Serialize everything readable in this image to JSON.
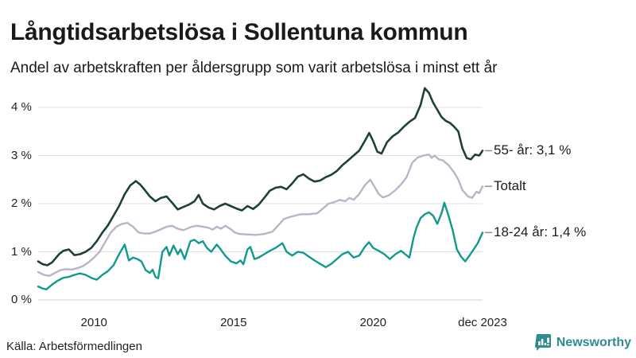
{
  "header": {
    "title": "Långtidsarbetslösa i Sollentuna kommun",
    "subtitle": "Andel av arbetskraften per åldersgrupp som varit arbetslösa i minst ett år"
  },
  "colors": {
    "series_55": "#1f4038",
    "series_total": "#b9b5c8",
    "series_18_24": "#0f9a8d",
    "grid": "#e1e1e6",
    "zero_line": "#d2d2d8",
    "end_dash": "#8a8a8a",
    "brand": "#2f8b8e",
    "text": "#1a1a1a"
  },
  "chart_data": {
    "type": "line",
    "unit": "%",
    "grid": true,
    "x_domain": [
      2008.0,
      2023.92
    ],
    "ylim": [
      0,
      4.5
    ],
    "y_ticks": [
      {
        "value": 0,
        "label": "0 %"
      },
      {
        "value": 1,
        "label": "1 %"
      },
      {
        "value": 2,
        "label": "2 %"
      },
      {
        "value": 3,
        "label": "3 %"
      },
      {
        "value": 4,
        "label": "4 %"
      }
    ],
    "x_ticks": [
      {
        "value": 2010,
        "label": "2010"
      },
      {
        "value": 2015,
        "label": "2015"
      },
      {
        "value": 2020,
        "label": "2020"
      },
      {
        "value": 2023.92,
        "label": "dec 2023"
      }
    ],
    "legend_position": "right-of-line-ends",
    "series": [
      {
        "name": "Totalt",
        "end_label": "Totalt",
        "end_value": 2.36,
        "color": "#b9b5c8",
        "width": 2.4,
        "points": [
          [
            2008.0,
            0.58
          ],
          [
            2008.2,
            0.52
          ],
          [
            2008.4,
            0.5
          ],
          [
            2008.6,
            0.56
          ],
          [
            2008.8,
            0.62
          ],
          [
            2009.0,
            0.64
          ],
          [
            2009.2,
            0.63
          ],
          [
            2009.4,
            0.66
          ],
          [
            2009.6,
            0.7
          ],
          [
            2009.8,
            0.78
          ],
          [
            2010.0,
            0.88
          ],
          [
            2010.2,
            1.0
          ],
          [
            2010.4,
            1.2
          ],
          [
            2010.6,
            1.4
          ],
          [
            2010.8,
            1.52
          ],
          [
            2011.0,
            1.58
          ],
          [
            2011.2,
            1.6
          ],
          [
            2011.4,
            1.52
          ],
          [
            2011.6,
            1.4
          ],
          [
            2011.8,
            1.38
          ],
          [
            2012.0,
            1.38
          ],
          [
            2012.2,
            1.42
          ],
          [
            2012.4,
            1.47
          ],
          [
            2012.6,
            1.52
          ],
          [
            2012.8,
            1.54
          ],
          [
            2013.0,
            1.48
          ],
          [
            2013.2,
            1.45
          ],
          [
            2013.5,
            1.52
          ],
          [
            2013.7,
            1.54
          ],
          [
            2013.9,
            1.52
          ],
          [
            2014.1,
            1.5
          ],
          [
            2014.25,
            1.46
          ],
          [
            2014.4,
            1.52
          ],
          [
            2014.55,
            1.48
          ],
          [
            2014.7,
            1.54
          ],
          [
            2014.9,
            1.47
          ],
          [
            2015.05,
            1.4
          ],
          [
            2015.2,
            1.37
          ],
          [
            2015.5,
            1.36
          ],
          [
            2015.8,
            1.35
          ],
          [
            2016.1,
            1.37
          ],
          [
            2016.4,
            1.42
          ],
          [
            2016.6,
            1.55
          ],
          [
            2016.8,
            1.68
          ],
          [
            2017.0,
            1.72
          ],
          [
            2017.2,
            1.75
          ],
          [
            2017.4,
            1.78
          ],
          [
            2017.7,
            1.78
          ],
          [
            2018.0,
            1.8
          ],
          [
            2018.2,
            1.9
          ],
          [
            2018.4,
            2.0
          ],
          [
            2018.6,
            2.03
          ],
          [
            2018.8,
            2.08
          ],
          [
            2019.0,
            2.05
          ],
          [
            2019.15,
            2.12
          ],
          [
            2019.3,
            2.08
          ],
          [
            2019.5,
            2.2
          ],
          [
            2019.7,
            2.38
          ],
          [
            2019.9,
            2.5
          ],
          [
            2020.05,
            2.35
          ],
          [
            2020.2,
            2.2
          ],
          [
            2020.35,
            2.13
          ],
          [
            2020.55,
            2.17
          ],
          [
            2020.8,
            2.28
          ],
          [
            2021.0,
            2.4
          ],
          [
            2021.2,
            2.55
          ],
          [
            2021.4,
            2.85
          ],
          [
            2021.6,
            2.96
          ],
          [
            2021.8,
            3.0
          ],
          [
            2022.0,
            3.02
          ],
          [
            2022.1,
            2.95
          ],
          [
            2022.2,
            3.0
          ],
          [
            2022.35,
            2.92
          ],
          [
            2022.5,
            2.9
          ],
          [
            2022.7,
            2.8
          ],
          [
            2022.9,
            2.65
          ],
          [
            2023.05,
            2.5
          ],
          [
            2023.2,
            2.28
          ],
          [
            2023.4,
            2.15
          ],
          [
            2023.55,
            2.12
          ],
          [
            2023.7,
            2.25
          ],
          [
            2023.8,
            2.22
          ],
          [
            2023.92,
            2.36
          ]
        ]
      },
      {
        "name": "18-24 år",
        "end_label": "18-24 år: 1,4 %",
        "end_value": 1.4,
        "color": "#0f9a8d",
        "width": 2.4,
        "points": [
          [
            2008.0,
            0.28
          ],
          [
            2008.15,
            0.24
          ],
          [
            2008.3,
            0.22
          ],
          [
            2008.5,
            0.32
          ],
          [
            2008.7,
            0.4
          ],
          [
            2008.9,
            0.46
          ],
          [
            2009.1,
            0.48
          ],
          [
            2009.3,
            0.52
          ],
          [
            2009.5,
            0.55
          ],
          [
            2009.7,
            0.52
          ],
          [
            2009.9,
            0.46
          ],
          [
            2010.1,
            0.42
          ],
          [
            2010.3,
            0.52
          ],
          [
            2010.5,
            0.6
          ],
          [
            2010.7,
            0.72
          ],
          [
            2010.9,
            0.95
          ],
          [
            2011.1,
            1.15
          ],
          [
            2011.25,
            0.82
          ],
          [
            2011.4,
            0.88
          ],
          [
            2011.55,
            0.85
          ],
          [
            2011.7,
            0.8
          ],
          [
            2011.85,
            0.62
          ],
          [
            2012.0,
            0.56
          ],
          [
            2012.1,
            0.63
          ],
          [
            2012.2,
            0.48
          ],
          [
            2012.3,
            0.45
          ],
          [
            2012.45,
            1.0
          ],
          [
            2012.6,
            1.1
          ],
          [
            2012.7,
            0.92
          ],
          [
            2012.85,
            1.13
          ],
          [
            2013.0,
            0.95
          ],
          [
            2013.1,
            1.05
          ],
          [
            2013.25,
            0.85
          ],
          [
            2013.45,
            1.22
          ],
          [
            2013.6,
            1.25
          ],
          [
            2013.75,
            1.18
          ],
          [
            2013.9,
            1.22
          ],
          [
            2014.05,
            1.08
          ],
          [
            2014.2,
            1.0
          ],
          [
            2014.4,
            1.15
          ],
          [
            2014.5,
            1.08
          ],
          [
            2014.7,
            0.92
          ],
          [
            2014.9,
            0.8
          ],
          [
            2015.1,
            0.76
          ],
          [
            2015.25,
            0.82
          ],
          [
            2015.35,
            0.74
          ],
          [
            2015.5,
            1.05
          ],
          [
            2015.6,
            1.1
          ],
          [
            2015.75,
            0.85
          ],
          [
            2015.9,
            0.88
          ],
          [
            2016.1,
            0.95
          ],
          [
            2016.3,
            1.02
          ],
          [
            2016.5,
            1.08
          ],
          [
            2016.75,
            1.18
          ],
          [
            2016.9,
            1.0
          ],
          [
            2017.1,
            0.92
          ],
          [
            2017.3,
            1.0
          ],
          [
            2017.5,
            0.98
          ],
          [
            2017.7,
            0.9
          ],
          [
            2017.9,
            0.82
          ],
          [
            2018.1,
            0.75
          ],
          [
            2018.3,
            0.68
          ],
          [
            2018.5,
            0.75
          ],
          [
            2018.7,
            0.85
          ],
          [
            2018.9,
            0.95
          ],
          [
            2019.1,
            1.0
          ],
          [
            2019.3,
            0.88
          ],
          [
            2019.5,
            0.92
          ],
          [
            2019.7,
            1.1
          ],
          [
            2019.85,
            1.2
          ],
          [
            2020.0,
            1.08
          ],
          [
            2020.2,
            1.02
          ],
          [
            2020.4,
            0.95
          ],
          [
            2020.6,
            0.85
          ],
          [
            2020.8,
            0.95
          ],
          [
            2021.0,
            1.02
          ],
          [
            2021.15,
            0.95
          ],
          [
            2021.3,
            0.88
          ],
          [
            2021.45,
            1.3
          ],
          [
            2021.55,
            1.5
          ],
          [
            2021.7,
            1.7
          ],
          [
            2021.85,
            1.78
          ],
          [
            2022.0,
            1.82
          ],
          [
            2022.15,
            1.75
          ],
          [
            2022.3,
            1.58
          ],
          [
            2022.45,
            1.8
          ],
          [
            2022.55,
            2.02
          ],
          [
            2022.7,
            1.75
          ],
          [
            2022.85,
            1.45
          ],
          [
            2023.0,
            1.05
          ],
          [
            2023.15,
            0.9
          ],
          [
            2023.3,
            0.8
          ],
          [
            2023.45,
            0.92
          ],
          [
            2023.6,
            1.05
          ],
          [
            2023.75,
            1.18
          ],
          [
            2023.92,
            1.4
          ]
        ]
      },
      {
        "name": "55- år",
        "end_label": "55- år: 3,1 %",
        "end_value": 3.1,
        "color": "#1f4038",
        "width": 2.6,
        "points": [
          [
            2008.0,
            0.8
          ],
          [
            2008.17,
            0.74
          ],
          [
            2008.33,
            0.72
          ],
          [
            2008.5,
            0.78
          ],
          [
            2008.75,
            0.95
          ],
          [
            2008.9,
            1.02
          ],
          [
            2009.1,
            1.05
          ],
          [
            2009.3,
            0.93
          ],
          [
            2009.5,
            0.95
          ],
          [
            2009.7,
            1.0
          ],
          [
            2009.9,
            1.08
          ],
          [
            2010.1,
            1.22
          ],
          [
            2010.3,
            1.4
          ],
          [
            2010.5,
            1.55
          ],
          [
            2010.7,
            1.75
          ],
          [
            2010.9,
            1.95
          ],
          [
            2011.1,
            2.2
          ],
          [
            2011.3,
            2.38
          ],
          [
            2011.5,
            2.47
          ],
          [
            2011.65,
            2.4
          ],
          [
            2011.8,
            2.3
          ],
          [
            2012.0,
            2.15
          ],
          [
            2012.2,
            2.05
          ],
          [
            2012.4,
            2.12
          ],
          [
            2012.6,
            2.15
          ],
          [
            2012.8,
            2.02
          ],
          [
            2013.0,
            1.88
          ],
          [
            2013.2,
            1.93
          ],
          [
            2013.4,
            1.98
          ],
          [
            2013.6,
            2.05
          ],
          [
            2013.75,
            2.18
          ],
          [
            2013.9,
            2.0
          ],
          [
            2014.1,
            1.92
          ],
          [
            2014.3,
            1.88
          ],
          [
            2014.5,
            1.95
          ],
          [
            2014.7,
            2.0
          ],
          [
            2014.9,
            1.95
          ],
          [
            2015.1,
            1.9
          ],
          [
            2015.3,
            1.86
          ],
          [
            2015.5,
            1.95
          ],
          [
            2015.7,
            1.89
          ],
          [
            2015.9,
            1.98
          ],
          [
            2016.1,
            2.12
          ],
          [
            2016.3,
            2.27
          ],
          [
            2016.5,
            2.33
          ],
          [
            2016.7,
            2.35
          ],
          [
            2016.9,
            2.3
          ],
          [
            2017.1,
            2.42
          ],
          [
            2017.3,
            2.56
          ],
          [
            2017.5,
            2.61
          ],
          [
            2017.7,
            2.52
          ],
          [
            2017.9,
            2.46
          ],
          [
            2018.1,
            2.48
          ],
          [
            2018.3,
            2.55
          ],
          [
            2018.5,
            2.6
          ],
          [
            2018.7,
            2.68
          ],
          [
            2018.9,
            2.8
          ],
          [
            2019.1,
            2.9
          ],
          [
            2019.3,
            3.0
          ],
          [
            2019.5,
            3.1
          ],
          [
            2019.7,
            3.3
          ],
          [
            2019.86,
            3.47
          ],
          [
            2020.0,
            3.3
          ],
          [
            2020.15,
            3.08
          ],
          [
            2020.3,
            3.04
          ],
          [
            2020.5,
            3.28
          ],
          [
            2020.7,
            3.4
          ],
          [
            2020.9,
            3.48
          ],
          [
            2021.1,
            3.6
          ],
          [
            2021.3,
            3.7
          ],
          [
            2021.5,
            3.78
          ],
          [
            2021.7,
            4.05
          ],
          [
            2021.85,
            4.4
          ],
          [
            2022.0,
            4.3
          ],
          [
            2022.15,
            4.1
          ],
          [
            2022.3,
            3.95
          ],
          [
            2022.45,
            3.8
          ],
          [
            2022.6,
            3.72
          ],
          [
            2022.75,
            3.68
          ],
          [
            2022.9,
            3.6
          ],
          [
            2023.05,
            3.5
          ],
          [
            2023.2,
            3.15
          ],
          [
            2023.35,
            2.95
          ],
          [
            2023.5,
            2.92
          ],
          [
            2023.65,
            3.02
          ],
          [
            2023.8,
            3.0
          ],
          [
            2023.92,
            3.1
          ]
        ]
      }
    ]
  },
  "footer": {
    "source": "Källa: Arbetsförmedlingen",
    "brand": "Newsworthy"
  }
}
